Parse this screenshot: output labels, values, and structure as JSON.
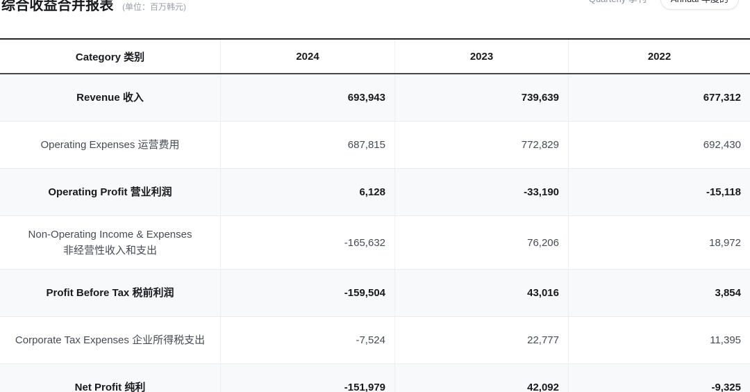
{
  "header": {
    "title": "综合收益合并报表",
    "unit_note": "(单位：百万韩元)",
    "toggle": {
      "quarterly_label": "Quarterly 季刊",
      "annual_label": "Annual 年度的",
      "selected": "Annual 年度的"
    }
  },
  "table": {
    "columns": [
      "Category 类别",
      "2024",
      "2023",
      "2022"
    ],
    "rows": [
      {
        "label": "Revenue 收入",
        "label2": "",
        "values": [
          "693,943",
          "739,639",
          "677,312"
        ],
        "emphasis": true
      },
      {
        "label": "Operating Expenses 运营费用",
        "label2": "",
        "values": [
          "687,815",
          "772,829",
          "692,430"
        ],
        "emphasis": false
      },
      {
        "label": "Operating Profit 营业利润",
        "label2": "",
        "values": [
          "6,128",
          "-33,190",
          "-15,118"
        ],
        "emphasis": true
      },
      {
        "label": "Non-Operating Income & Expenses",
        "label2": "非经营性收入和支出",
        "values": [
          "-165,632",
          "76,206",
          "18,972"
        ],
        "emphasis": false
      },
      {
        "label": "Profit Before Tax 税前利润",
        "label2": "",
        "values": [
          "-159,504",
          "43,016",
          "3,854"
        ],
        "emphasis": true
      },
      {
        "label": "Corporate Tax Expenses 企业所得税支出",
        "label2": "",
        "values": [
          "-7,524",
          "22,777",
          "11,395"
        ],
        "emphasis": false
      },
      {
        "label": "Net Profit 纯利",
        "label2": "",
        "values": [
          "-151,979",
          "42,092",
          "-9,325"
        ],
        "emphasis": true
      }
    ]
  },
  "colors": {
    "row_shade": "#f8f9fb",
    "table_top_border": "#202328",
    "header_bottom_border": "#46484d",
    "row_divider": "#e9ebee",
    "muted_text": "#9aa0a8",
    "emphasis_text": "#17191c",
    "normal_text": "#454b54"
  }
}
